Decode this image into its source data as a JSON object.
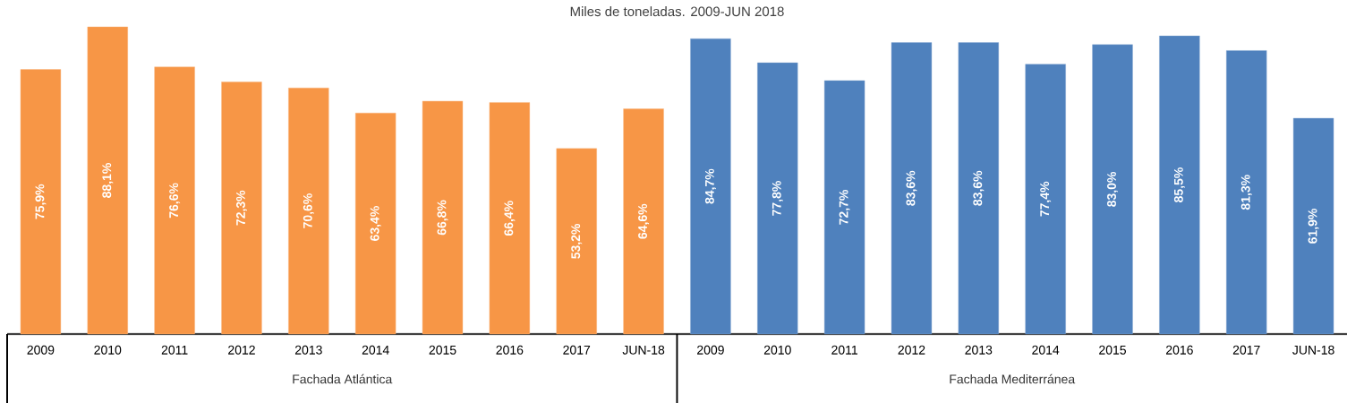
{
  "chart_data": {
    "type": "bar",
    "title": "Miles de toneladas. 2009-JUN 2018",
    "categories": [
      "2009",
      "2010",
      "2011",
      "2012",
      "2013",
      "2014",
      "2015",
      "2016",
      "2017",
      "JUN-18",
      "2009",
      "2010",
      "2011",
      "2012",
      "2013",
      "2014",
      "2015",
      "2016",
      "2017",
      "JUN-18"
    ],
    "annotations": [
      "Fachada Atlántica",
      "Fachada Mediterránea"
    ],
    "series": [
      {
        "color": "#f79646",
        "values": [
          75.9,
          88.1,
          76.6,
          72.3,
          70.6,
          63.4,
          66.8,
          66.4,
          53.2,
          64.6,
          null,
          null,
          null,
          null,
          null,
          null,
          null,
          null,
          null,
          null
        ],
        "value_labels": [
          "75,9%",
          "88,1%",
          "76,6%",
          "72,3%",
          "70,6%",
          "63,4%",
          "66,8%",
          "66,4%",
          "53,2%",
          "64,6%",
          null,
          null,
          null,
          null,
          null,
          null,
          null,
          null,
          null,
          null
        ]
      },
      {
        "color": "#4f81bd",
        "values": [
          null,
          null,
          null,
          null,
          null,
          null,
          null,
          null,
          null,
          null,
          84.7,
          77.8,
          72.7,
          83.6,
          83.6,
          77.4,
          83.0,
          85.5,
          81.3,
          61.9
        ],
        "value_labels": [
          null,
          null,
          null,
          null,
          null,
          null,
          null,
          null,
          null,
          null,
          "84,7%",
          "77,8%",
          "72,7%",
          "83,6%",
          "83,6%",
          "77,4%",
          "83,0%",
          "85,5%",
          "81,3%",
          "61,9%"
        ]
      }
    ]
  }
}
